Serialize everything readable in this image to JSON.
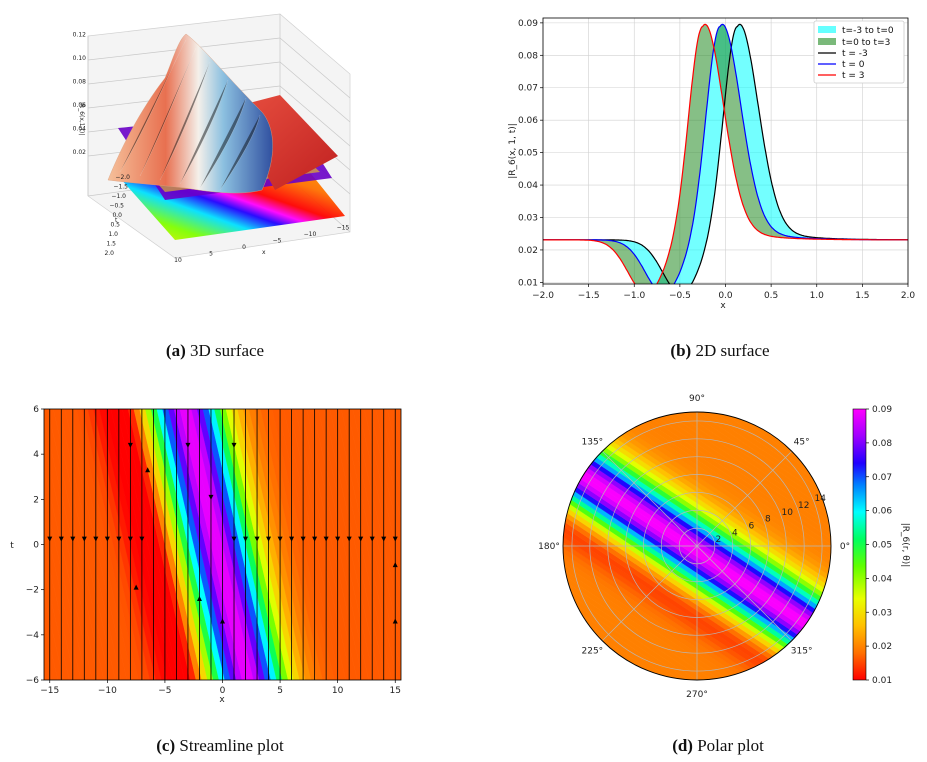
{
  "captions": {
    "a_letter": "(a)",
    "a_text": " 3D surface",
    "b_letter": "(b)",
    "b_text": " 2D surface",
    "c_letter": "(c)",
    "c_text": " Streamline plot",
    "d_letter": "(d)",
    "d_text": " Polar plot"
  },
  "colors": {
    "cyan_fill": "#00ffff",
    "green_fill": "#228b22",
    "line_t_neg3": "#000000",
    "line_t0": "#0000ff",
    "line_t3": "#ff0000",
    "grid": "#d0d0d0"
  },
  "chart_data": [
    {
      "id": "a",
      "type": "surface3d",
      "title": "3D surface",
      "zlabel": "|R_6(x,1,t)|",
      "xlabel": "x",
      "ylabel": "t",
      "x_ticks": [
        "10",
        "5",
        "0",
        "−5",
        "−10",
        "−15"
      ],
      "t_ticks": [
        "−2.0",
        "−1.5",
        "−1.0",
        "−0.5",
        "0.0",
        "0.5",
        "1.0",
        "1.5",
        "2.0"
      ],
      "z_ticks": [
        "0.02",
        "0.04",
        "0.06",
        "0.08",
        "0.10",
        "0.12"
      ],
      "zlim": [
        0,
        0.12
      ]
    },
    {
      "id": "b",
      "type": "line",
      "title": "2D surface",
      "xlabel": "x",
      "ylabel": "|R_6(x, 1, t)|",
      "xlim": [
        -2.0,
        2.0
      ],
      "ylim": [
        0.0095,
        0.0915
      ],
      "x_ticks": [
        -2.0,
        -1.5,
        -1.0,
        -0.5,
        0.0,
        0.5,
        1.0,
        1.5,
        2.0
      ],
      "x_tick_labels": [
        "−2.0",
        "−1.5",
        "−1.0",
        "−0.5",
        "0.0",
        "0.5",
        "1.0",
        "1.5",
        "2.0"
      ],
      "y_ticks": [
        0.01,
        0.02,
        0.03,
        0.04,
        0.05,
        0.06,
        0.07,
        0.08,
        0.09
      ],
      "y_tick_labels": [
        "0.01",
        "0.02",
        "0.03",
        "0.04",
        "0.05",
        "0.06",
        "0.07",
        "0.08",
        "0.09"
      ],
      "legend_position": "top-right",
      "legend": [
        "t=-3 to t=0",
        "t=0 to t=3",
        "t = -3",
        "t = 0",
        "t = 3"
      ],
      "series": [
        {
          "name": "t = -3",
          "shift": 0.13,
          "peak": 0.089,
          "dip": 0.0122
        },
        {
          "name": "t = 0",
          "shift": -0.06,
          "peak": 0.089,
          "dip": 0.0122
        },
        {
          "name": "t = 3",
          "shift": -0.25,
          "peak": 0.089,
          "dip": 0.0122
        }
      ],
      "baseline": 0.0231
    },
    {
      "id": "c",
      "type": "streamline",
      "title": "Streamline plot",
      "xlabel": "x",
      "ylabel": "t",
      "xlim": [
        -15.5,
        15.5
      ],
      "ylim": [
        -6,
        6
      ],
      "x_ticks": [
        -15,
        -10,
        -5,
        0,
        5,
        10,
        15
      ],
      "x_tick_labels": [
        "−15",
        "−10",
        "−5",
        "0",
        "5",
        "10",
        "15"
      ],
      "y_ticks": [
        -6,
        -4,
        -2,
        0,
        2,
        4,
        6
      ],
      "y_tick_labels": [
        "−6",
        "−4",
        "−2",
        "0",
        "2",
        "4",
        "6"
      ]
    },
    {
      "id": "d",
      "type": "polar",
      "title": "Polar plot",
      "angle_labels": [
        "0°",
        "45°",
        "90°",
        "135°",
        "180°",
        "225°",
        "270°",
        "315°"
      ],
      "radial_ticks": [
        2,
        4,
        6,
        8,
        10,
        12,
        14
      ],
      "radial_tick_labels": [
        "2",
        "4",
        "6",
        "8",
        "10",
        "12",
        "14"
      ],
      "rmax": 15,
      "colorbar_label": "|R_6(r, θ)|",
      "colorbar_ticks": [
        0.01,
        0.02,
        0.03,
        0.04,
        0.05,
        0.06,
        0.07,
        0.08,
        0.09
      ],
      "colorbar_tick_labels": [
        "0.01",
        "0.02",
        "0.03",
        "0.04",
        "0.05",
        "0.06",
        "0.07",
        "0.08",
        "0.09"
      ]
    }
  ]
}
